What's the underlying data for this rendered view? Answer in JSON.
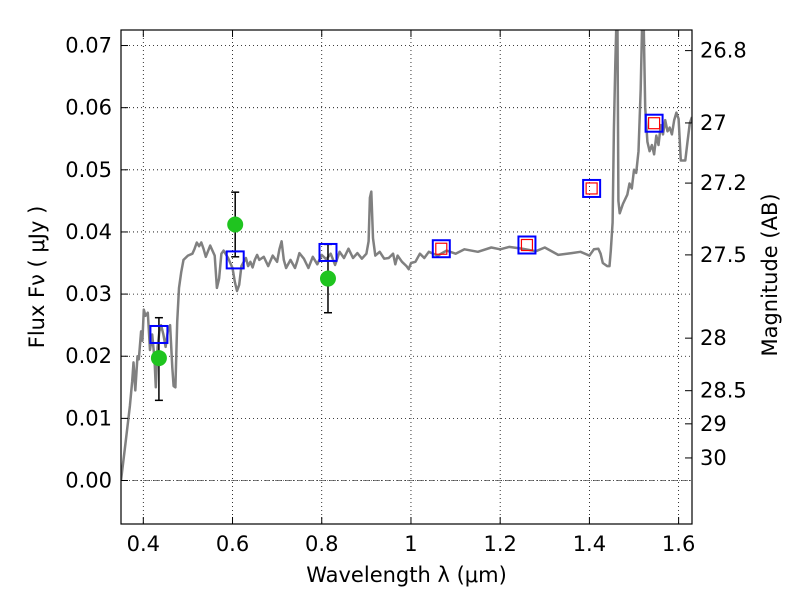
{
  "chart_data": {
    "type": "line",
    "xlabel": "Wavelength  λ (μm)",
    "ylabel": "Flux  Fν  ( μJy )",
    "ylabel2": "Magnitude (AB)",
    "xlim": [
      0.35,
      1.63
    ],
    "ylim": [
      -0.007,
      0.0725
    ],
    "grid": true,
    "x_ticks": [
      0.4,
      0.6,
      0.8,
      1.0,
      1.2,
      1.4,
      1.6
    ],
    "x_tick_labels": [
      "0.4",
      "0.6",
      "0.8",
      "1",
      "1.2",
      "1.4",
      "1.6"
    ],
    "y_ticks": [
      0.0,
      0.01,
      0.02,
      0.03,
      0.04,
      0.05,
      0.06,
      0.07
    ],
    "y_tick_labels": [
      "0.00",
      "0.01",
      "0.02",
      "0.03",
      "0.04",
      "0.05",
      "0.06",
      "0.07"
    ],
    "mag_ticks": [
      26.8,
      27.0,
      27.2,
      27.5,
      28.0,
      28.5,
      29.0,
      30.0
    ],
    "mag_tick_labels": [
      "26.8",
      "27",
      "27.2",
      "27.5",
      "28",
      "28.5",
      "29",
      "30"
    ],
    "sed_model": {
      "color": "#808080",
      "points": [
        [
          0.35,
          0.0
        ],
        [
          0.36,
          0.006
        ],
        [
          0.37,
          0.012
        ],
        [
          0.375,
          0.016
        ],
        [
          0.378,
          0.019
        ],
        [
          0.382,
          0.0145
        ],
        [
          0.387,
          0.02
        ],
        [
          0.39,
          0.0195
        ],
        [
          0.395,
          0.024
        ],
        [
          0.398,
          0.0225
        ],
        [
          0.401,
          0.0275
        ],
        [
          0.405,
          0.0265
        ],
        [
          0.41,
          0.027
        ],
        [
          0.415,
          0.021
        ],
        [
          0.42,
          0.0235
        ],
        [
          0.425,
          0.0195
        ],
        [
          0.428,
          0.015
        ],
        [
          0.432,
          0.0215
        ],
        [
          0.436,
          0.024
        ],
        [
          0.44,
          0.025
        ],
        [
          0.445,
          0.0235
        ],
        [
          0.45,
          0.0215
        ],
        [
          0.455,
          0.024
        ],
        [
          0.46,
          0.025
        ],
        [
          0.465,
          0.0182
        ],
        [
          0.468,
          0.0152
        ],
        [
          0.472,
          0.015
        ],
        [
          0.476,
          0.0255
        ],
        [
          0.48,
          0.031
        ],
        [
          0.485,
          0.0335
        ],
        [
          0.49,
          0.0355
        ],
        [
          0.5,
          0.0362
        ],
        [
          0.51,
          0.0365
        ],
        [
          0.515,
          0.0373
        ],
        [
          0.52,
          0.0383
        ],
        [
          0.525,
          0.0377
        ],
        [
          0.53,
          0.0383
        ],
        [
          0.535,
          0.0373
        ],
        [
          0.54,
          0.036
        ],
        [
          0.55,
          0.0378
        ],
        [
          0.56,
          0.0362
        ],
        [
          0.565,
          0.031
        ],
        [
          0.57,
          0.0325
        ],
        [
          0.575,
          0.0365
        ],
        [
          0.58,
          0.037
        ],
        [
          0.59,
          0.0358
        ],
        [
          0.6,
          0.0342
        ],
        [
          0.605,
          0.032
        ],
        [
          0.61,
          0.0305
        ],
        [
          0.615,
          0.0315
        ],
        [
          0.62,
          0.0345
        ],
        [
          0.63,
          0.0358
        ],
        [
          0.635,
          0.0345
        ],
        [
          0.64,
          0.0352
        ],
        [
          0.645,
          0.0343
        ],
        [
          0.65,
          0.0355
        ],
        [
          0.655,
          0.0363
        ],
        [
          0.66,
          0.0355
        ],
        [
          0.67,
          0.036
        ],
        [
          0.68,
          0.0345
        ],
        [
          0.69,
          0.0362
        ],
        [
          0.7,
          0.0352
        ],
        [
          0.705,
          0.0372
        ],
        [
          0.71,
          0.0385
        ],
        [
          0.715,
          0.0355
        ],
        [
          0.72,
          0.0342
        ],
        [
          0.73,
          0.0355
        ],
        [
          0.74,
          0.0342
        ],
        [
          0.745,
          0.0353
        ],
        [
          0.75,
          0.0366
        ],
        [
          0.76,
          0.0357
        ],
        [
          0.77,
          0.0342
        ],
        [
          0.78,
          0.036
        ],
        [
          0.79,
          0.0348
        ],
        [
          0.8,
          0.0363
        ],
        [
          0.81,
          0.0356
        ],
        [
          0.82,
          0.0365
        ],
        [
          0.83,
          0.0347
        ],
        [
          0.84,
          0.0368
        ],
        [
          0.85,
          0.0358
        ],
        [
          0.86,
          0.0373
        ],
        [
          0.87,
          0.0358
        ],
        [
          0.88,
          0.0366
        ],
        [
          0.89,
          0.0357
        ],
        [
          0.9,
          0.0365
        ],
        [
          0.905,
          0.0385
        ],
        [
          0.908,
          0.0455
        ],
        [
          0.911,
          0.0465
        ],
        [
          0.915,
          0.039
        ],
        [
          0.92,
          0.0362
        ],
        [
          0.93,
          0.0368
        ],
        [
          0.94,
          0.0357
        ],
        [
          0.95,
          0.0358
        ],
        [
          0.96,
          0.0365
        ],
        [
          0.965,
          0.0348
        ],
        [
          0.97,
          0.0362
        ],
        [
          0.98,
          0.0352
        ],
        [
          0.99,
          0.0345
        ],
        [
          0.995,
          0.034
        ],
        [
          1.0,
          0.035
        ],
        [
          1.01,
          0.0352
        ],
        [
          1.02,
          0.0365
        ],
        [
          1.03,
          0.0358
        ],
        [
          1.04,
          0.0368
        ],
        [
          1.06,
          0.0362
        ],
        [
          1.08,
          0.037
        ],
        [
          1.1,
          0.0365
        ],
        [
          1.12,
          0.0372
        ],
        [
          1.15,
          0.0368
        ],
        [
          1.18,
          0.0375
        ],
        [
          1.2,
          0.0372
        ],
        [
          1.22,
          0.0376
        ],
        [
          1.25,
          0.0373
        ],
        [
          1.28,
          0.0369
        ],
        [
          1.3,
          0.0375
        ],
        [
          1.33,
          0.0363
        ],
        [
          1.36,
          0.0366
        ],
        [
          1.38,
          0.0368
        ],
        [
          1.4,
          0.0362
        ],
        [
          1.41,
          0.0372
        ],
        [
          1.42,
          0.0373
        ],
        [
          1.425,
          0.0365
        ],
        [
          1.43,
          0.035
        ],
        [
          1.44,
          0.0345
        ],
        [
          1.445,
          0.0345
        ],
        [
          1.448,
          0.037
        ],
        [
          1.452,
          0.0415
        ],
        [
          1.455,
          0.0565
        ],
        [
          1.458,
          0.067
        ],
        [
          1.46,
          0.0725
        ],
        [
          1.463,
          0.0725
        ],
        [
          1.465,
          0.045
        ],
        [
          1.468,
          0.043
        ],
        [
          1.475,
          0.0445
        ],
        [
          1.485,
          0.046
        ],
        [
          1.49,
          0.0478
        ],
        [
          1.495,
          0.047
        ],
        [
          1.5,
          0.05
        ],
        [
          1.505,
          0.0495
        ],
        [
          1.51,
          0.053
        ],
        [
          1.515,
          0.063
        ],
        [
          1.518,
          0.0725
        ],
        [
          1.522,
          0.0725
        ],
        [
          1.525,
          0.06
        ],
        [
          1.53,
          0.0545
        ],
        [
          1.535,
          0.053
        ],
        [
          1.54,
          0.054
        ],
        [
          1.545,
          0.0525
        ],
        [
          1.55,
          0.0555
        ],
        [
          1.555,
          0.054
        ],
        [
          1.56,
          0.0572
        ],
        [
          1.565,
          0.0557
        ],
        [
          1.57,
          0.058
        ],
        [
          1.575,
          0.0562
        ],
        [
          1.58,
          0.0568
        ],
        [
          1.585,
          0.0557
        ],
        [
          1.59,
          0.058
        ],
        [
          1.595,
          0.0592
        ],
        [
          1.6,
          0.0582
        ],
        [
          1.605,
          0.0515
        ],
        [
          1.615,
          0.0515
        ],
        [
          1.62,
          0.0545
        ],
        [
          1.625,
          0.0575
        ],
        [
          1.63,
          0.0585
        ]
      ]
    },
    "observed_photometry": {
      "color": "#1fc41f",
      "points": [
        {
          "x": 0.435,
          "y": 0.0197,
          "yerr_low": 0.0068,
          "yerr_high": 0.0065
        },
        {
          "x": 0.606,
          "y": 0.0412,
          "yerr_low": 0.0052,
          "yerr_high": 0.0052
        },
        {
          "x": 0.814,
          "y": 0.0325,
          "yerr_low": 0.0055,
          "yerr_high": 0.0055
        }
      ]
    },
    "model_photometry": {
      "color": "#0000ff",
      "values": [
        [
          0.435,
          0.0235
        ],
        [
          0.606,
          0.0355
        ],
        [
          0.814,
          0.0367
        ],
        [
          1.068,
          0.0373
        ],
        [
          1.26,
          0.0379
        ],
        [
          1.405,
          0.047
        ],
        [
          1.545,
          0.0575
        ]
      ]
    },
    "model_photometry_inner": {
      "color": "#ff0000",
      "values": [
        [
          1.068,
          0.0373
        ],
        [
          1.26,
          0.0379
        ],
        [
          1.405,
          0.047
        ],
        [
          1.545,
          0.0575
        ]
      ]
    },
    "errorbar_color": "#000000"
  }
}
